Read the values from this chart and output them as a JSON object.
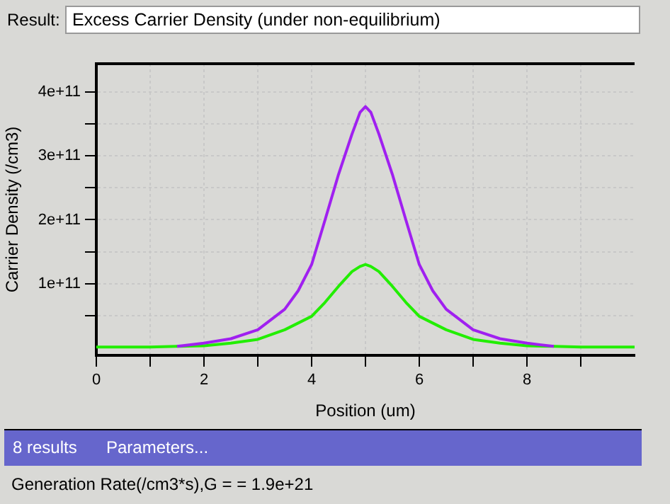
{
  "chart_data": {
    "type": "line",
    "title": "Excess Carrier Density (under non-equilibrium)",
    "xlabel": "Position (um)",
    "ylabel": "Carrier Density (/cm3)",
    "annotations": [
      "Result:",
      "8 results",
      "Parameters...",
      "Generation Rate(/cm3*s),G = = 1.9e+21"
    ],
    "series": [
      {
        "color": "#a020f0",
        "x": [
          1.5,
          2,
          2.5,
          3,
          3.5,
          3.75,
          4,
          4.25,
          4.5,
          4.75,
          4.9,
          5,
          5.1,
          5.25,
          5.5,
          5.75,
          6,
          6.25,
          6.5,
          7,
          7.5,
          8,
          8.5
        ],
        "values": [
          2000000000.0,
          7000000000.0,
          14000000000.0,
          28000000000.0,
          60000000000.0,
          89000000000.0,
          130000000000.0,
          200000000000.0,
          271000000000.0,
          334000000000.0,
          368000000000.0,
          377000000000.0,
          368000000000.0,
          334000000000.0,
          271000000000.0,
          200000000000.0,
          130000000000.0,
          89000000000.0,
          60000000000.0,
          28000000000.0,
          14000000000.0,
          7000000000.0,
          2000000000.0
        ]
      },
      {
        "color": "#22ee00",
        "x": [
          0,
          1,
          1.5,
          2,
          2.5,
          3,
          3.5,
          4,
          4.25,
          4.5,
          4.75,
          4.9,
          5,
          5.1,
          5.25,
          5.5,
          5.75,
          6,
          6.5,
          7,
          7.5,
          8,
          8.5,
          9,
          10
        ],
        "values": [
          1000000000.0,
          1000000000.0,
          2000000000.0,
          3000000000.0,
          7000000000.0,
          13000000000.0,
          28000000000.0,
          49000000000.0,
          71000000000.0,
          96000000000.0,
          119000000000.0,
          127000000000.0,
          130000000000.0,
          127000000000.0,
          119000000000.0,
          96000000000.0,
          71000000000.0,
          49000000000.0,
          28000000000.0,
          13000000000.0,
          7000000000.0,
          3000000000.0,
          2000000000.0,
          1000000000.0,
          1000000000.0
        ]
      }
    ],
    "xlim": [
      0,
      10
    ],
    "xticks": [
      0,
      {
        "value": 1,
        "label": null
      },
      2,
      {
        "value": 3,
        "label": null
      },
      4,
      {
        "value": 5,
        "label": null
      },
      6,
      {
        "value": 7,
        "label": null
      },
      8,
      {
        "value": 9,
        "label": null
      }
    ],
    "ylim": [
      -12000000000.0,
      444000000000.0
    ],
    "yticks": [
      {
        "value": 50000000000.0,
        "label": null
      },
      {
        "value": 100000000000.0,
        "label": "1e+11"
      },
      {
        "value": 150000000000.0,
        "label": null
      },
      {
        "value": 200000000000.0,
        "label": "2e+11"
      },
      {
        "value": 250000000000.0,
        "label": null
      },
      {
        "value": 300000000000.0,
        "label": "3e+11"
      },
      {
        "value": 350000000000.0,
        "label": null
      },
      {
        "value": 400000000000.0,
        "label": "4e+11"
      }
    ],
    "grid": true,
    "legend": false,
    "marker": "none",
    "line_style": "solid"
  }
}
